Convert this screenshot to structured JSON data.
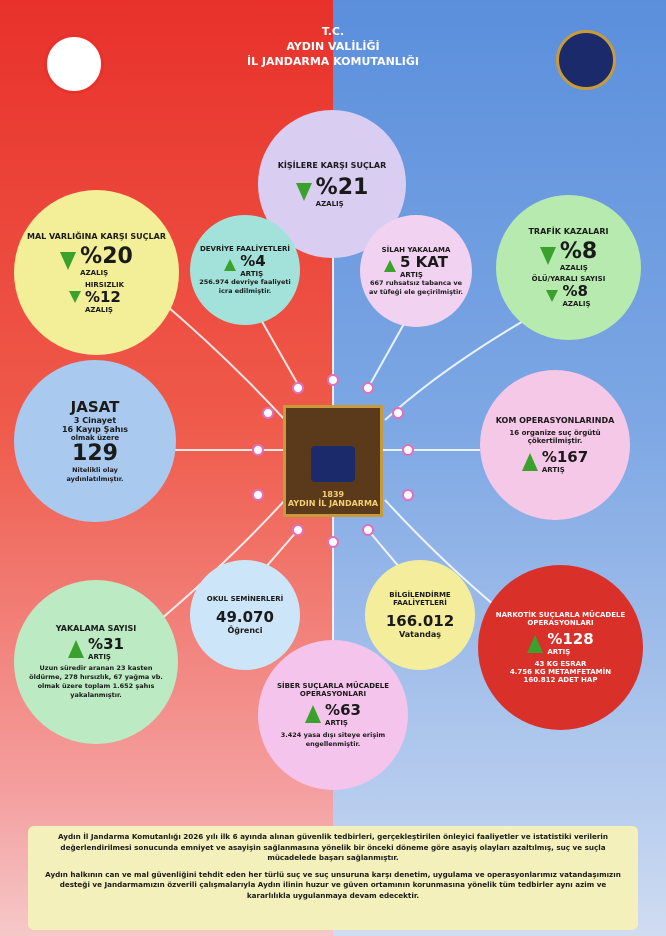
{
  "header": {
    "line1": "T.C.",
    "line2": "AYDIN VALİLİĞİ",
    "line3": "İL JANDARMA KOMUTANLIĞI"
  },
  "emblem": {
    "text": "AYDIN İL JANDARMA",
    "year": "1839"
  },
  "bubbles": {
    "persons": {
      "title": "KİŞİLERE KARŞI SUÇLAR",
      "value": "%21",
      "change": "AZALIŞ"
    },
    "property": {
      "title": "MAL VARLIĞINA KARŞI SUÇLAR",
      "value": "%20",
      "change": "AZALIŞ",
      "sub_title": "HIRSIZLIK",
      "sub_value": "%12",
      "sub_change": "AZALIŞ"
    },
    "patrol": {
      "title": "DEVRİYE FAALİYETLERİ",
      "value": "%4",
      "change": "ARTIŞ",
      "note": "256.974 devriye faaliyeti icra edilmiştir."
    },
    "weapons": {
      "title": "SİLAH YAKALAMA",
      "value": "5 KAT",
      "change": "ARTIŞ",
      "note": "667 ruhsatsız tabanca ve av tüfeği ele geçirilmiştir."
    },
    "traffic": {
      "title": "TRAFİK KAZALARI",
      "value": "%8",
      "change": "AZALIŞ",
      "sub_title": "ÖLÜ/YARALI SAYISI",
      "sub_value": "%8",
      "sub_change": "AZALIŞ"
    },
    "jasat": {
      "title": "JASAT",
      "line1": "3 Cinayet",
      "line2": "16 Kayıp Şahıs",
      "line3": "olmak üzere",
      "value": "129",
      "note": "Nitelikli olay aydınlatılmıştır."
    },
    "kom": {
      "title": "KOM OPERASYONLARINDA",
      "note": "16 organize suç örgütü çökertilmiştir.",
      "value": "%167",
      "change": "ARTIŞ"
    },
    "arrests": {
      "title": "YAKALAMA SAYISI",
      "value": "%31",
      "change": "ARTIŞ",
      "note": "Uzun süredir aranan 23 kasten öldürme, 278 hırsızlık, 67 yağma vb. olmak üzere toplam 1.652 şahıs yakalanmıştır."
    },
    "seminars": {
      "title": "OKUL SEMİNERLERİ",
      "value": "49.070",
      "unit": "Öğrenci"
    },
    "info": {
      "title": "BİLGİLENDİRME FAALİYETLERİ",
      "value": "166.012",
      "unit": "Vatandaş"
    },
    "narcotics": {
      "title": "NARKOTİK SUÇLARLA MÜCADELE OPERASYONLARI",
      "value": "%128",
      "change": "ARTIŞ",
      "line1": "43 KG ESRAR",
      "line2": "4.756 KG METAMFETAMİN",
      "line3": "160.812 ADET HAP"
    },
    "cyber": {
      "title": "SİBER SUÇLARLA MÜCADELE OPERASYONLARI",
      "value": "%63",
      "change": "ARTIŞ",
      "note": "3.424 yasa dışı siteye erişim engellenmiştir."
    }
  },
  "footer": {
    "p1": "Aydın İl Jandarma Komutanlığı 2026 yılı ilk 6 ayında alınan güvenlik tedbirleri, gerçekleştirilen önleyici faaliyetler ve istatistiki verilerin değerlendirilmesi sonucunda emniyet ve asayişin sağlanmasına yönelik bir önceki döneme göre asayiş olayları azaltılmış, suç ve suçla mücadelede başarı sağlanmıştır.",
    "p2": "Aydın halkının can ve mal güvenliğini tehdit eden her türlü suç ve suç unsuruna karşı denetim, uygulama ve operasyonlarımız vatandaşımızın desteği ve Jandarmamızın özverili çalışmalarıyla Aydın ilinin huzur ve güven ortamının korunmasına yönelik tüm tedbirler aynı azim ve kararlılıkla uygulanmaya devam edecektir."
  }
}
